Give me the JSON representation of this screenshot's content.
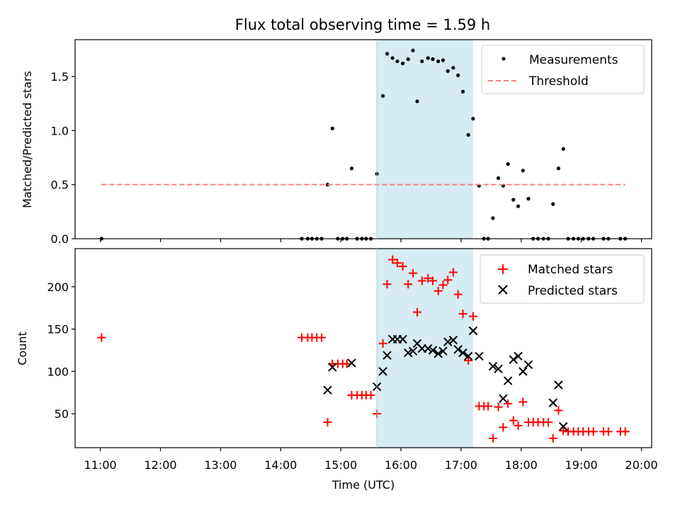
{
  "chart_data": [
    {
      "type": "scatter",
      "title": "Flux total observing time = 1.59 h",
      "ylabel": "Matched/Predicted stars",
      "xlim": [
        10.58,
        20.17
      ],
      "ylim": [
        0,
        1.84
      ],
      "yticks": [
        0.0,
        0.5,
        1.0,
        1.5
      ],
      "ytick_labels": [
        "0.0",
        "0.5",
        "1.0",
        "1.5"
      ],
      "grid": false,
      "legend_position": "top-right",
      "shaded_span": {
        "x_start": 15.6,
        "x_end": 17.2,
        "color": "#add8e6"
      },
      "series": [
        {
          "name": "Measurements",
          "marker": "dot",
          "color": "#000000",
          "points": [
            [
              11.02,
              0.0
            ],
            [
              14.35,
              0.0
            ],
            [
              14.45,
              0.0
            ],
            [
              14.52,
              0.0
            ],
            [
              14.6,
              0.0
            ],
            [
              14.68,
              0.0
            ],
            [
              14.78,
              0.5
            ],
            [
              14.86,
              1.02
            ],
            [
              14.95,
              0.0
            ],
            [
              15.03,
              0.0
            ],
            [
              15.1,
              0.0
            ],
            [
              15.18,
              0.65
            ],
            [
              15.27,
              0.0
            ],
            [
              15.35,
              0.0
            ],
            [
              15.42,
              0.0
            ],
            [
              15.5,
              0.0
            ],
            [
              15.6,
              0.6
            ],
            [
              15.7,
              1.32
            ],
            [
              15.77,
              1.71
            ],
            [
              15.86,
              1.67
            ],
            [
              15.94,
              1.64
            ],
            [
              16.03,
              1.62
            ],
            [
              16.12,
              1.66
            ],
            [
              16.2,
              1.74
            ],
            [
              16.27,
              1.27
            ],
            [
              16.35,
              1.64
            ],
            [
              16.45,
              1.67
            ],
            [
              16.53,
              1.66
            ],
            [
              16.62,
              1.64
            ],
            [
              16.7,
              1.65
            ],
            [
              16.78,
              1.55
            ],
            [
              16.87,
              1.58
            ],
            [
              16.95,
              1.51
            ],
            [
              17.03,
              1.36
            ],
            [
              17.12,
              0.96
            ],
            [
              17.2,
              1.11
            ],
            [
              17.3,
              0.49
            ],
            [
              17.38,
              0.0
            ],
            [
              17.45,
              0.0
            ],
            [
              17.53,
              0.19
            ],
            [
              17.62,
              0.56
            ],
            [
              17.7,
              0.49
            ],
            [
              17.78,
              0.69
            ],
            [
              17.87,
              0.36
            ],
            [
              17.95,
              0.3
            ],
            [
              18.03,
              0.63
            ],
            [
              18.12,
              0.37
            ],
            [
              18.2,
              0.0
            ],
            [
              18.28,
              0.0
            ],
            [
              18.37,
              0.0
            ],
            [
              18.45,
              0.0
            ],
            [
              18.53,
              0.32
            ],
            [
              18.62,
              0.65
            ],
            [
              18.7,
              0.83
            ],
            [
              18.78,
              0.0
            ],
            [
              18.87,
              0.0
            ],
            [
              18.95,
              0.0
            ],
            [
              19.03,
              0.0
            ],
            [
              19.12,
              0.0
            ],
            [
              19.2,
              0.0
            ],
            [
              19.37,
              0.0
            ],
            [
              19.45,
              0.0
            ],
            [
              19.65,
              0.0
            ],
            [
              19.73,
              0.0
            ]
          ]
        },
        {
          "name": "Threshold",
          "marker": "dashed-line",
          "color": "#ff7f7f",
          "points": [
            [
              11.02,
              0.5
            ],
            [
              19.73,
              0.5
            ]
          ]
        }
      ]
    },
    {
      "type": "scatter",
      "xlabel": "Time (UTC)",
      "ylabel": "Count",
      "xlim": [
        10.58,
        20.17
      ],
      "ylim": [
        10,
        245
      ],
      "xticks": [
        11,
        12,
        13,
        14,
        15,
        16,
        17,
        18,
        19,
        20
      ],
      "xtick_labels": [
        "11:00",
        "12:00",
        "13:00",
        "14:00",
        "15:00",
        "16:00",
        "17:00",
        "18:00",
        "19:00",
        "20:00"
      ],
      "yticks": [
        50,
        100,
        150,
        200
      ],
      "ytick_labels": [
        "50",
        "100",
        "150",
        "200"
      ],
      "grid": false,
      "legend_position": "top-right",
      "shaded_span": {
        "x_start": 15.6,
        "x_end": 17.2,
        "color": "#add8e6"
      },
      "series": [
        {
          "name": "Matched stars",
          "marker": "plus",
          "color": "#ff0000",
          "points": [
            [
              11.02,
              140
            ],
            [
              14.35,
              140
            ],
            [
              14.45,
              140
            ],
            [
              14.52,
              140
            ],
            [
              14.6,
              140
            ],
            [
              14.68,
              140
            ],
            [
              14.78,
              40
            ],
            [
              14.86,
              109
            ],
            [
              14.95,
              109
            ],
            [
              15.03,
              109
            ],
            [
              15.1,
              109
            ],
            [
              15.18,
              72
            ],
            [
              15.27,
              72
            ],
            [
              15.35,
              72
            ],
            [
              15.42,
              72
            ],
            [
              15.5,
              72
            ],
            [
              15.6,
              50
            ],
            [
              15.7,
              133
            ],
            [
              15.77,
              203
            ],
            [
              15.86,
              232
            ],
            [
              15.94,
              228
            ],
            [
              16.03,
              224
            ],
            [
              16.12,
              203
            ],
            [
              16.2,
              216
            ],
            [
              16.27,
              170
            ],
            [
              16.35,
              207
            ],
            [
              16.45,
              210
            ],
            [
              16.53,
              207
            ],
            [
              16.62,
              195
            ],
            [
              16.7,
              202
            ],
            [
              16.78,
              208
            ],
            [
              16.87,
              217
            ],
            [
              16.95,
              191
            ],
            [
              17.03,
              168
            ],
            [
              17.12,
              113
            ],
            [
              17.2,
              165
            ],
            [
              17.3,
              59
            ],
            [
              17.38,
              59
            ],
            [
              17.45,
              59
            ],
            [
              17.53,
              21
            ],
            [
              17.62,
              58
            ],
            [
              17.7,
              34
            ],
            [
              17.78,
              62
            ],
            [
              17.87,
              42
            ],
            [
              17.95,
              36
            ],
            [
              18.03,
              64
            ],
            [
              18.12,
              40
            ],
            [
              18.2,
              40
            ],
            [
              18.28,
              40
            ],
            [
              18.37,
              40
            ],
            [
              18.45,
              40
            ],
            [
              18.53,
              21
            ],
            [
              18.62,
              54
            ],
            [
              18.7,
              30
            ],
            [
              18.78,
              29
            ],
            [
              18.87,
              29
            ],
            [
              18.95,
              29
            ],
            [
              19.03,
              29
            ],
            [
              19.12,
              29
            ],
            [
              19.2,
              29
            ],
            [
              19.37,
              29
            ],
            [
              19.45,
              29
            ],
            [
              19.65,
              29
            ],
            [
              19.73,
              29
            ]
          ]
        },
        {
          "name": "Predicted stars",
          "marker": "x",
          "color": "#000000",
          "points": [
            [
              14.78,
              78
            ],
            [
              14.86,
              105
            ],
            [
              15.18,
              110
            ],
            [
              15.6,
              82
            ],
            [
              15.7,
              100
            ],
            [
              15.77,
              119
            ],
            [
              15.86,
              138
            ],
            [
              15.94,
              138
            ],
            [
              16.03,
              138
            ],
            [
              16.12,
              122
            ],
            [
              16.2,
              124
            ],
            [
              16.27,
              133
            ],
            [
              16.35,
              127
            ],
            [
              16.45,
              127
            ],
            [
              16.53,
              125
            ],
            [
              16.62,
              121
            ],
            [
              16.7,
              124
            ],
            [
              16.78,
              135
            ],
            [
              16.87,
              137
            ],
            [
              16.95,
              126
            ],
            [
              17.03,
              122
            ],
            [
              17.12,
              118
            ],
            [
              17.2,
              148
            ],
            [
              17.3,
              118
            ],
            [
              17.53,
              106
            ],
            [
              17.62,
              103
            ],
            [
              17.7,
              68
            ],
            [
              17.78,
              89
            ],
            [
              17.87,
              114
            ],
            [
              17.95,
              118
            ],
            [
              18.03,
              100
            ],
            [
              18.12,
              108
            ],
            [
              18.53,
              63
            ],
            [
              18.62,
              84
            ],
            [
              18.7,
              35
            ]
          ]
        }
      ]
    }
  ]
}
